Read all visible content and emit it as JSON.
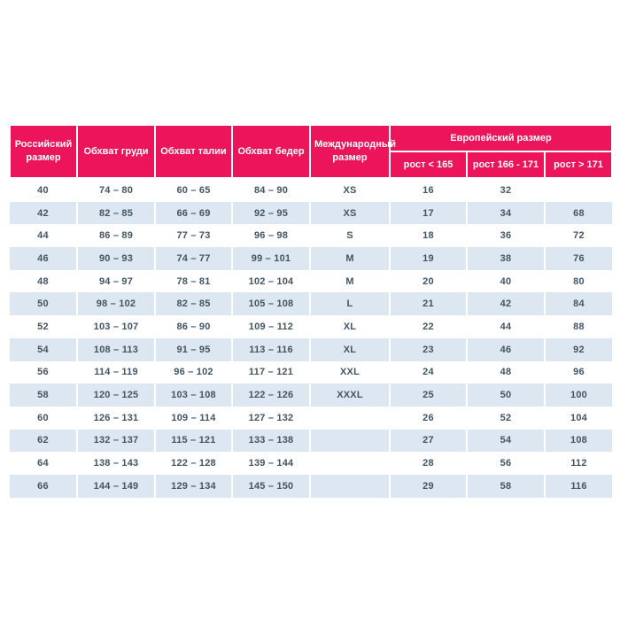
{
  "colors": {
    "header_bg": "#EC145A",
    "header_text": "#FFFFFF",
    "row_alt_bg": "#DDE7F2",
    "row_bg": "#FFFFFF",
    "cell_text": "#425563",
    "page_bg": "#FFFFFF"
  },
  "table": {
    "header": {
      "russian_size": "Российский размер",
      "chest": "Обхват груди",
      "waist": "Обхват талии",
      "hips": "Обхват бедер",
      "international": "Международный размер",
      "european_group": "Европейский размер",
      "height_lt_165": "рост < 165",
      "height_166_171": "рост 166 - 171",
      "height_gt_171": "рост > 171"
    },
    "rows": [
      [
        "40",
        "74 – 80",
        "60 – 65",
        "84 – 90",
        "XS",
        "16",
        "32",
        ""
      ],
      [
        "42",
        "82 – 85",
        "66 – 69",
        "92 – 95",
        "XS",
        "17",
        "34",
        "68"
      ],
      [
        "44",
        "86 – 89",
        "77 – 73",
        "96 – 98",
        "S",
        "18",
        "36",
        "72"
      ],
      [
        "46",
        "90 – 93",
        "74 – 77",
        "99 – 101",
        "M",
        "19",
        "38",
        "76"
      ],
      [
        "48",
        "94 – 97",
        "78 – 81",
        "102 – 104",
        "M",
        "20",
        "40",
        "80"
      ],
      [
        "50",
        "98 – 102",
        "82 – 85",
        "105 – 108",
        "L",
        "21",
        "42",
        "84"
      ],
      [
        "52",
        "103 – 107",
        "86 – 90",
        "109 – 112",
        "XL",
        "22",
        "44",
        "88"
      ],
      [
        "54",
        "108 – 113",
        "91 – 95",
        "113 – 116",
        "XL",
        "23",
        "46",
        "92"
      ],
      [
        "56",
        "114 – 119",
        "96 – 102",
        "117 – 121",
        "XXL",
        "24",
        "48",
        "96"
      ],
      [
        "58",
        "120 – 125",
        "103 – 108",
        "122 – 126",
        "XXXL",
        "25",
        "50",
        "100"
      ],
      [
        "60",
        "126 – 131",
        "109 – 114",
        "127 – 132",
        "",
        "26",
        "52",
        "104"
      ],
      [
        "62",
        "132 – 137",
        "115 – 121",
        "133 – 138",
        "",
        "27",
        "54",
        "108"
      ],
      [
        "64",
        "138 – 143",
        "122 – 128",
        "139 – 144",
        "",
        "28",
        "56",
        "112"
      ],
      [
        "66",
        "144 – 149",
        "129 – 134",
        "145 – 150",
        "",
        "29",
        "58",
        "116"
      ]
    ]
  }
}
